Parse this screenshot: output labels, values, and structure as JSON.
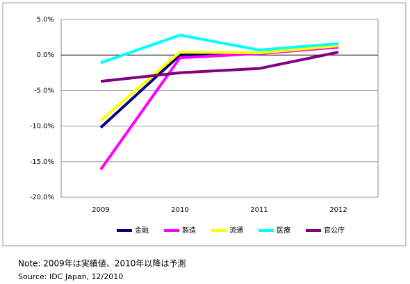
{
  "chart_data": {
    "type": "line",
    "categories": [
      "2009",
      "2010",
      "2011",
      "2012"
    ],
    "series": [
      {
        "name": "金融",
        "color": "#000080",
        "values": [
          -10.2,
          0.0,
          0.3,
          1.2
        ]
      },
      {
        "name": "製造",
        "color": "#ff00ff",
        "values": [
          -16.1,
          -0.4,
          0.2,
          1.1
        ]
      },
      {
        "name": "流通",
        "color": "#ffff00",
        "values": [
          -9.2,
          0.4,
          0.3,
          1.3
        ]
      },
      {
        "name": "医療",
        "color": "#00ffff",
        "values": [
          -1.1,
          2.8,
          0.7,
          1.6
        ]
      },
      {
        "name": "官公庁",
        "color": "#800080",
        "values": [
          -3.7,
          -2.5,
          -1.9,
          0.4
        ]
      }
    ],
    "ylim": [
      -20,
      5
    ],
    "yticks": [
      {
        "value": -20,
        "label": "-20.0%"
      },
      {
        "value": -15,
        "label": "-15.0%"
      },
      {
        "value": -10,
        "label": "-10.0%"
      },
      {
        "value": -5,
        "label": "-5.0%"
      },
      {
        "value": 0,
        "label": "0.0%"
      },
      {
        "value": 5,
        "label": "5.0%"
      }
    ],
    "grid": true,
    "legend": "bottom",
    "note": "Note: 2009年は実績値、2010年以降は予測",
    "source": "Source: IDC Japan, 12/2010"
  }
}
